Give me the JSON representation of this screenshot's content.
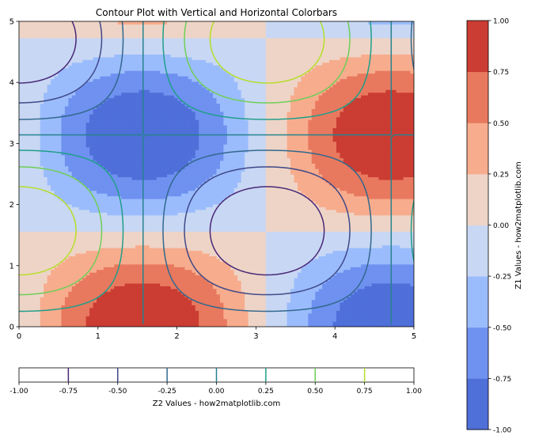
{
  "chart_data": {
    "type": "contour",
    "title": "Contour Plot with Vertical and Horizontal Colorbars",
    "xlabel": "",
    "ylabel": "",
    "xlim": [
      0,
      5
    ],
    "ylim": [
      0,
      5
    ],
    "x_ticks": [
      "0",
      "1",
      "2",
      "3",
      "4",
      "5"
    ],
    "y_ticks": [
      "0",
      "1",
      "2",
      "3",
      "4",
      "5"
    ],
    "grid": false,
    "filled_contour": {
      "name": "Z1",
      "function": "sin(x) * cos(y)",
      "levels": [
        -1.0,
        -0.75,
        -0.5,
        -0.25,
        0.0,
        0.25,
        0.5,
        0.75,
        1.0
      ],
      "colors": [
        "#4f6fd9",
        "#6f91f0",
        "#9bbcfc",
        "#c8d7f3",
        "#eed4c6",
        "#f7ac8d",
        "#e8795e",
        "#cb3c33"
      ],
      "colormap": "coolwarm",
      "extrema": [
        {
          "x": 1.571,
          "y": 0.0,
          "value": 1.0
        },
        {
          "x": 1.571,
          "y": 3.142,
          "value": -1.0
        },
        {
          "x": 4.712,
          "y": 3.142,
          "value": 1.0
        },
        {
          "x": 4.712,
          "y": 0.0,
          "value": -1.0
        }
      ]
    },
    "line_contour": {
      "name": "Z2",
      "function": "cos(x) * sin(y)",
      "levels": [
        -0.75,
        -0.5,
        -0.25,
        0.0,
        0.25,
        0.5,
        0.75
      ],
      "colors": [
        "#482878",
        "#3e4989",
        "#31688e",
        "#26828e",
        "#1f9e89",
        "#6ece58",
        "#b5de2b"
      ],
      "colormap": "viridis",
      "extrema": [
        {
          "x": 0.0,
          "y": 1.571,
          "value": 1.0
        },
        {
          "x": 3.142,
          "y": 1.571,
          "value": -1.0
        },
        {
          "x": 0.0,
          "y": 4.712,
          "value": -1.0
        },
        {
          "x": 3.142,
          "y": 4.712,
          "value": 1.0
        }
      ]
    },
    "colorbar_vertical": {
      "label": "Z1 Values - how2matplotlib.com",
      "ticks": [
        "-1.00",
        "-0.75",
        "-0.50",
        "-0.25",
        "0.00",
        "0.25",
        "0.50",
        "0.75",
        "1.00"
      ],
      "placement": "right"
    },
    "colorbar_horizontal": {
      "label": "Z2 Values - how2matplotlib.com",
      "ticks": [
        "-1.00",
        "-0.75",
        "-0.50",
        "-0.25",
        "0.00",
        "0.25",
        "0.50",
        "0.75",
        "1.00"
      ],
      "placement": "bottom"
    }
  }
}
